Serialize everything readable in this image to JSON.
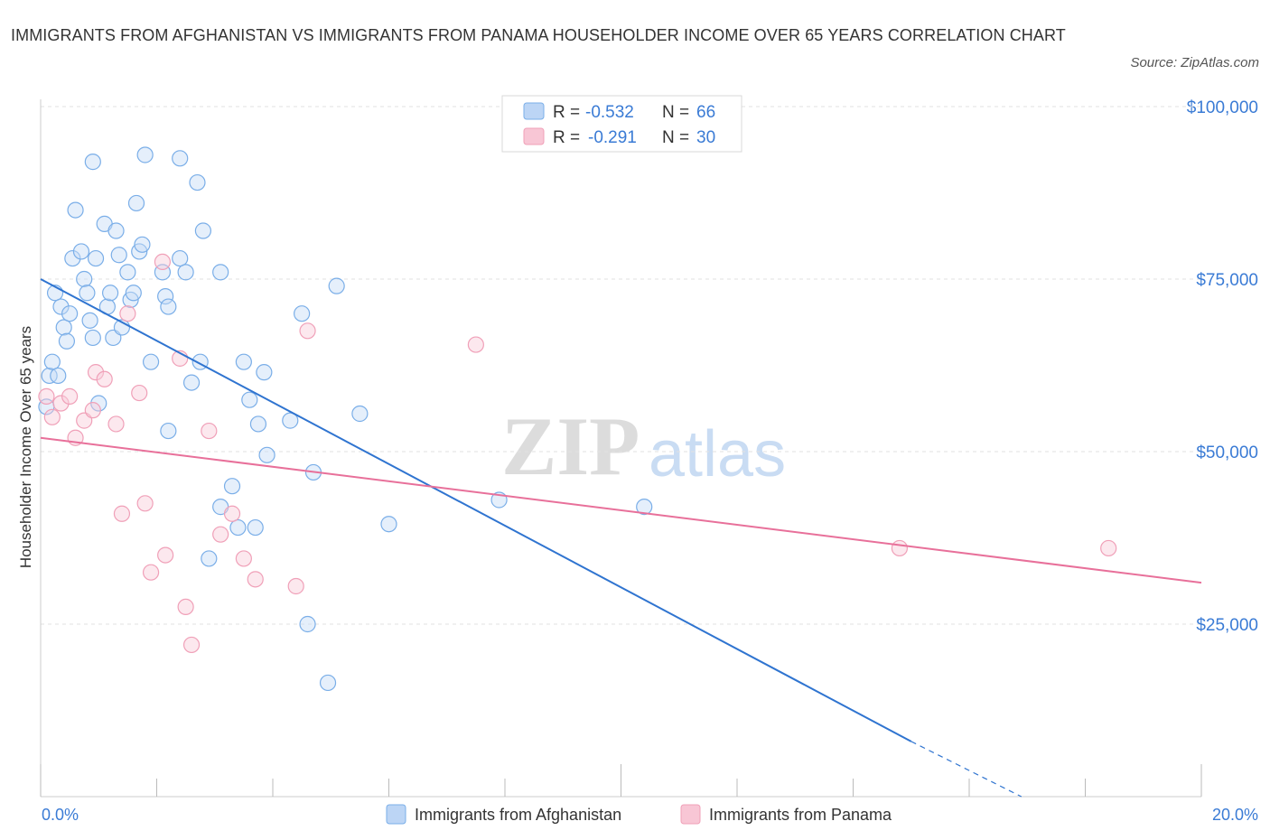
{
  "title": "IMMIGRANTS FROM AFGHANISTAN VS IMMIGRANTS FROM PANAMA HOUSEHOLDER INCOME OVER 65 YEARS CORRELATION CHART",
  "source": "Source: ZipAtlas.com",
  "watermark": {
    "zip": "ZIP",
    "atlas": "atlas"
  },
  "legend": {
    "rows": [
      {
        "r_label": "R = ",
        "r_value": "-0.532",
        "n_label": "N = ",
        "n_value": "66"
      },
      {
        "r_label": "R = ",
        "r_value": "-0.291",
        "n_label": "N = ",
        "n_value": "30"
      }
    ]
  },
  "chart_data": {
    "type": "scatter",
    "title": "IMMIGRANTS FROM AFGHANISTAN VS IMMIGRANTS FROM PANAMA HOUSEHOLDER INCOME OVER 65 YEARS CORRELATION CHART",
    "xlabel": "",
    "ylabel": "Householder Income Over 65 years",
    "xlim": [
      0,
      20
    ],
    "ylim": [
      0,
      100000
    ],
    "x_tick_labels": [
      "0.0%",
      "20.0%"
    ],
    "y_ticks": [
      25000,
      50000,
      75000,
      100000
    ],
    "y_tick_labels": [
      "$25,000",
      "$50,000",
      "$75,000",
      "$100,000"
    ],
    "grid": true,
    "legend_position": "top-center",
    "colors": {
      "afghanistan": "#7aaee8",
      "panama": "#f0a0b8",
      "afghanistan_line": "#2f74d0",
      "panama_line": "#e8709a"
    },
    "series": [
      {
        "name": "Immigrants from Afghanistan",
        "r": -0.532,
        "n": 66,
        "trend": {
          "x": [
            0,
            15
          ],
          "y": [
            75000,
            8000
          ],
          "dashed_to": [
            16.9,
            0
          ]
        },
        "points": [
          [
            0.1,
            56500
          ],
          [
            0.15,
            61000
          ],
          [
            0.2,
            63000
          ],
          [
            0.25,
            73000
          ],
          [
            0.3,
            61000
          ],
          [
            0.35,
            71000
          ],
          [
            0.4,
            68000
          ],
          [
            0.45,
            66000
          ],
          [
            0.5,
            70000
          ],
          [
            0.55,
            78000
          ],
          [
            0.6,
            85000
          ],
          [
            0.7,
            79000
          ],
          [
            0.75,
            75000
          ],
          [
            0.8,
            73000
          ],
          [
            0.85,
            69000
          ],
          [
            0.9,
            66500
          ],
          [
            0.95,
            78000
          ],
          [
            1.0,
            57000
          ],
          [
            1.1,
            83000
          ],
          [
            1.15,
            71000
          ],
          [
            1.2,
            73000
          ],
          [
            1.25,
            66500
          ],
          [
            1.3,
            82000
          ],
          [
            1.35,
            78500
          ],
          [
            1.4,
            68000
          ],
          [
            1.5,
            76000
          ],
          [
            1.55,
            72000
          ],
          [
            1.6,
            73000
          ],
          [
            1.65,
            86000
          ],
          [
            1.7,
            79000
          ],
          [
            1.75,
            80000
          ],
          [
            1.8,
            93000
          ],
          [
            1.9,
            63000
          ],
          [
            2.1,
            76000
          ],
          [
            2.15,
            72500
          ],
          [
            2.2,
            71000
          ],
          [
            2.2,
            53000
          ],
          [
            2.4,
            78000
          ],
          [
            2.5,
            76000
          ],
          [
            2.6,
            60000
          ],
          [
            2.7,
            89000
          ],
          [
            2.75,
            63000
          ],
          [
            2.8,
            82000
          ],
          [
            2.9,
            34500
          ],
          [
            3.1,
            42000
          ],
          [
            3.1,
            76000
          ],
          [
            3.3,
            45000
          ],
          [
            3.4,
            39000
          ],
          [
            3.5,
            63000
          ],
          [
            3.6,
            57500
          ],
          [
            3.7,
            39000
          ],
          [
            3.75,
            54000
          ],
          [
            3.85,
            61500
          ],
          [
            3.9,
            49500
          ],
          [
            4.3,
            54500
          ],
          [
            4.5,
            70000
          ],
          [
            4.6,
            25000
          ],
          [
            4.7,
            47000
          ],
          [
            4.95,
            16500
          ],
          [
            5.1,
            74000
          ],
          [
            5.5,
            55500
          ],
          [
            6.0,
            39500
          ],
          [
            7.9,
            43000
          ],
          [
            10.4,
            42000
          ],
          [
            0.9,
            92000
          ],
          [
            2.4,
            92500
          ]
        ]
      },
      {
        "name": "Immigrants from Panama",
        "r": -0.291,
        "n": 30,
        "trend": {
          "x": [
            0,
            20
          ],
          "y": [
            52000,
            31000
          ]
        },
        "points": [
          [
            0.1,
            58000
          ],
          [
            0.2,
            55000
          ],
          [
            0.35,
            57000
          ],
          [
            0.5,
            58000
          ],
          [
            0.6,
            52000
          ],
          [
            0.75,
            54500
          ],
          [
            0.9,
            56000
          ],
          [
            0.95,
            61500
          ],
          [
            1.1,
            60500
          ],
          [
            1.3,
            54000
          ],
          [
            1.4,
            41000
          ],
          [
            1.5,
            70000
          ],
          [
            1.7,
            58500
          ],
          [
            1.8,
            42500
          ],
          [
            1.9,
            32500
          ],
          [
            2.1,
            77500
          ],
          [
            2.15,
            35000
          ],
          [
            2.4,
            63500
          ],
          [
            2.5,
            27500
          ],
          [
            2.6,
            22000
          ],
          [
            2.9,
            53000
          ],
          [
            3.1,
            38000
          ],
          [
            3.3,
            41000
          ],
          [
            3.5,
            34500
          ],
          [
            3.7,
            31500
          ],
          [
            4.4,
            30500
          ],
          [
            4.6,
            67500
          ],
          [
            7.5,
            65500
          ],
          [
            14.8,
            36000
          ],
          [
            18.4,
            36000
          ]
        ]
      }
    ]
  }
}
